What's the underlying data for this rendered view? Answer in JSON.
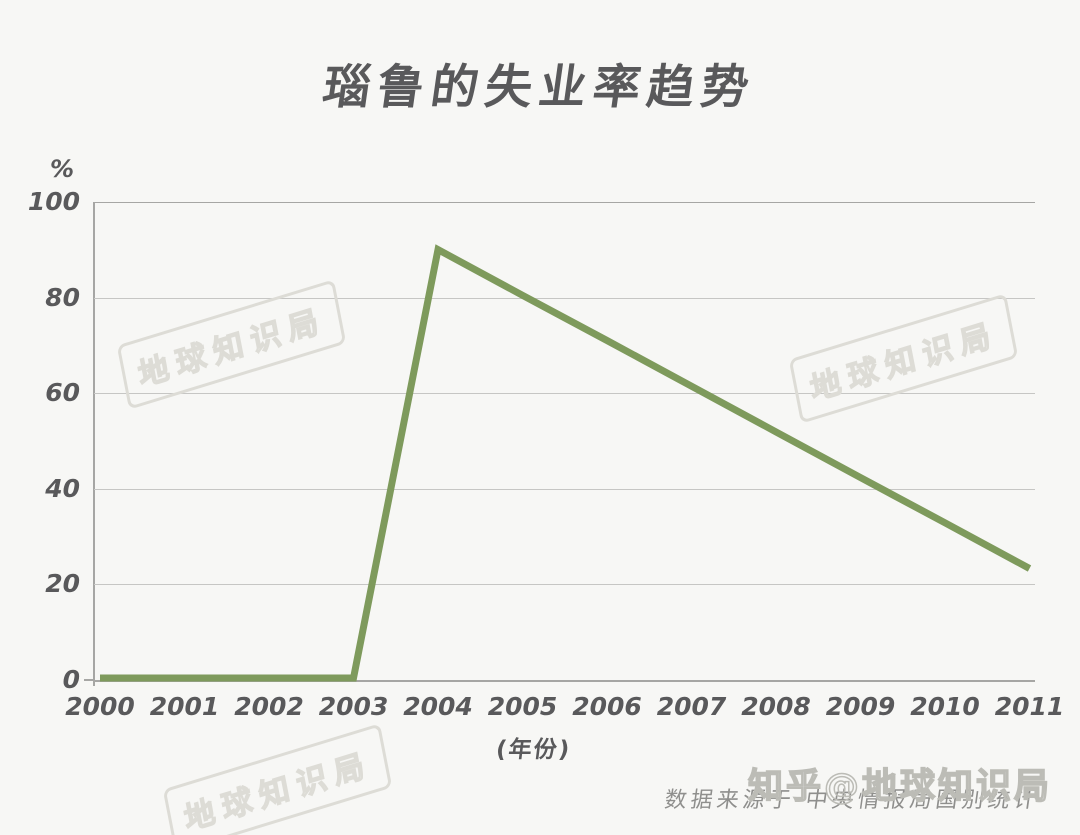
{
  "page": {
    "title": "瑙鲁的失业率趋势"
  },
  "y_axis": {
    "unit": "%",
    "ticks": [
      "100",
      "80",
      "60",
      "40",
      "20",
      "0"
    ]
  },
  "x_axis": {
    "title": "(年份)",
    "ticks": [
      "2000",
      "2001",
      "2002",
      "2003",
      "2004",
      "2005",
      "2006",
      "2007",
      "2008",
      "2009",
      "2010",
      "2011"
    ]
  },
  "footer": {
    "source_text": "数据来源于 中央情报局国别统计"
  },
  "watermarks": {
    "stamp_text": "地球知识局",
    "zhihu_text": "知乎@地球知识局"
  },
  "colors": {
    "background": "#f7f7f5",
    "text": "#59595b",
    "gridline": "#c6c6c4",
    "axis": "#a6a6a4",
    "line_green": "#7e9a5c",
    "stamp": "#dddcd6",
    "source_text": "#8f8f8d",
    "zhihu": "#bcbcb6"
  },
  "chart_data": {
    "type": "line",
    "title": "瑙鲁的失业率趋势",
    "xlabel": "(年份)",
    "ylabel": "%",
    "x": [
      2000,
      2001,
      2002,
      2003,
      2004,
      2005,
      2006,
      2007,
      2008,
      2009,
      2010,
      2011
    ],
    "series": [
      {
        "name": "失业率",
        "values": [
          0,
          0,
          0,
          0,
          90,
          80.4,
          70.9,
          61.3,
          51.7,
          42.1,
          32.6,
          23
        ]
      }
    ],
    "vertex_points": [
      [
        2000,
        0
      ],
      [
        2003,
        0
      ],
      [
        2004,
        90
      ],
      [
        2011,
        23
      ]
    ],
    "ylim": [
      0,
      100
    ],
    "yticks": [
      0,
      20,
      40,
      60,
      80,
      100
    ],
    "grid": true,
    "legend_position": "none",
    "line_color": "#7e9a5c",
    "line_width": 7
  }
}
